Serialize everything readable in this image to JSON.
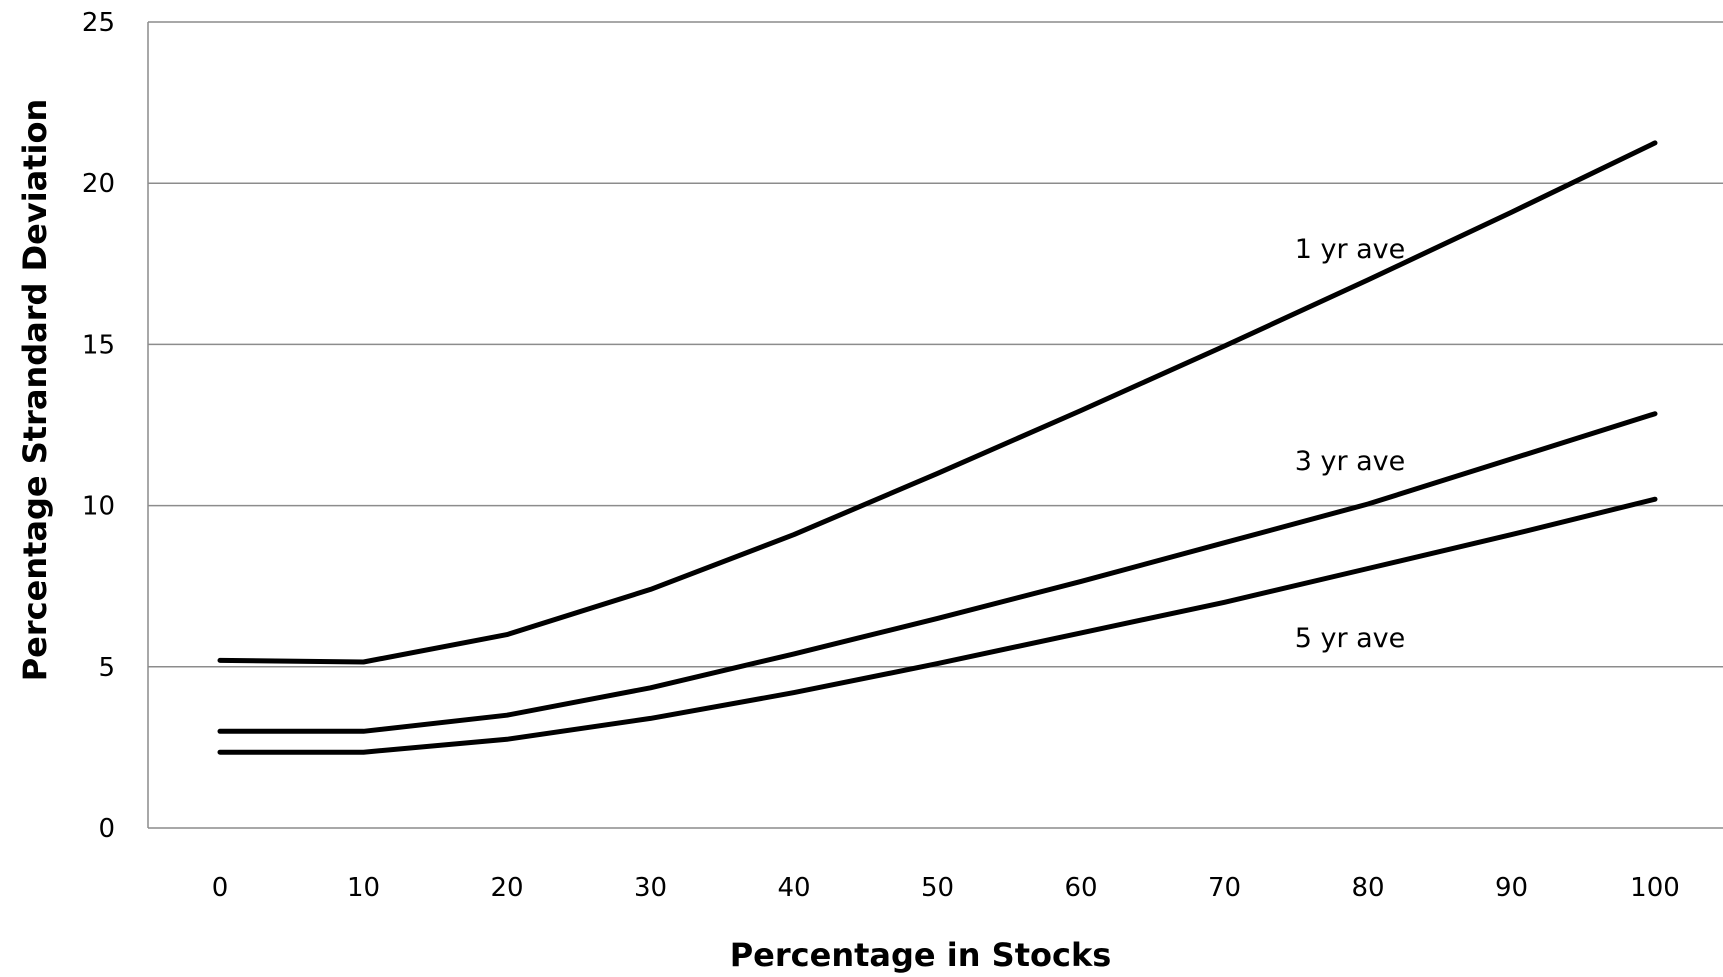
{
  "chart_data": {
    "type": "line",
    "x": [
      0,
      10,
      20,
      30,
      40,
      50,
      60,
      70,
      80,
      90,
      100
    ],
    "xlabel": "Percentage in Stocks",
    "ylabel": "Percentage Strandard Deviation",
    "ylim": [
      0,
      25
    ],
    "yticks": [
      0,
      5,
      10,
      15,
      20,
      25
    ],
    "grid": "horizontal",
    "colors": {
      "line": "#000000",
      "grid": "#8c8c8c"
    },
    "series": [
      {
        "name": "1 yr ave",
        "values": [
          5.2,
          5.15,
          6.0,
          7.4,
          9.1,
          11.0,
          12.95,
          14.95,
          17.0,
          19.1,
          21.25
        ]
      },
      {
        "name": "3 yr ave",
        "values": [
          3.0,
          3.0,
          3.5,
          4.35,
          5.4,
          6.5,
          7.65,
          8.85,
          10.05,
          11.45,
          12.85
        ]
      },
      {
        "name": "5 yr ave",
        "values": [
          2.35,
          2.35,
          2.75,
          3.4,
          4.2,
          5.1,
          6.05,
          7.0,
          8.05,
          9.1,
          10.2
        ]
      }
    ]
  }
}
